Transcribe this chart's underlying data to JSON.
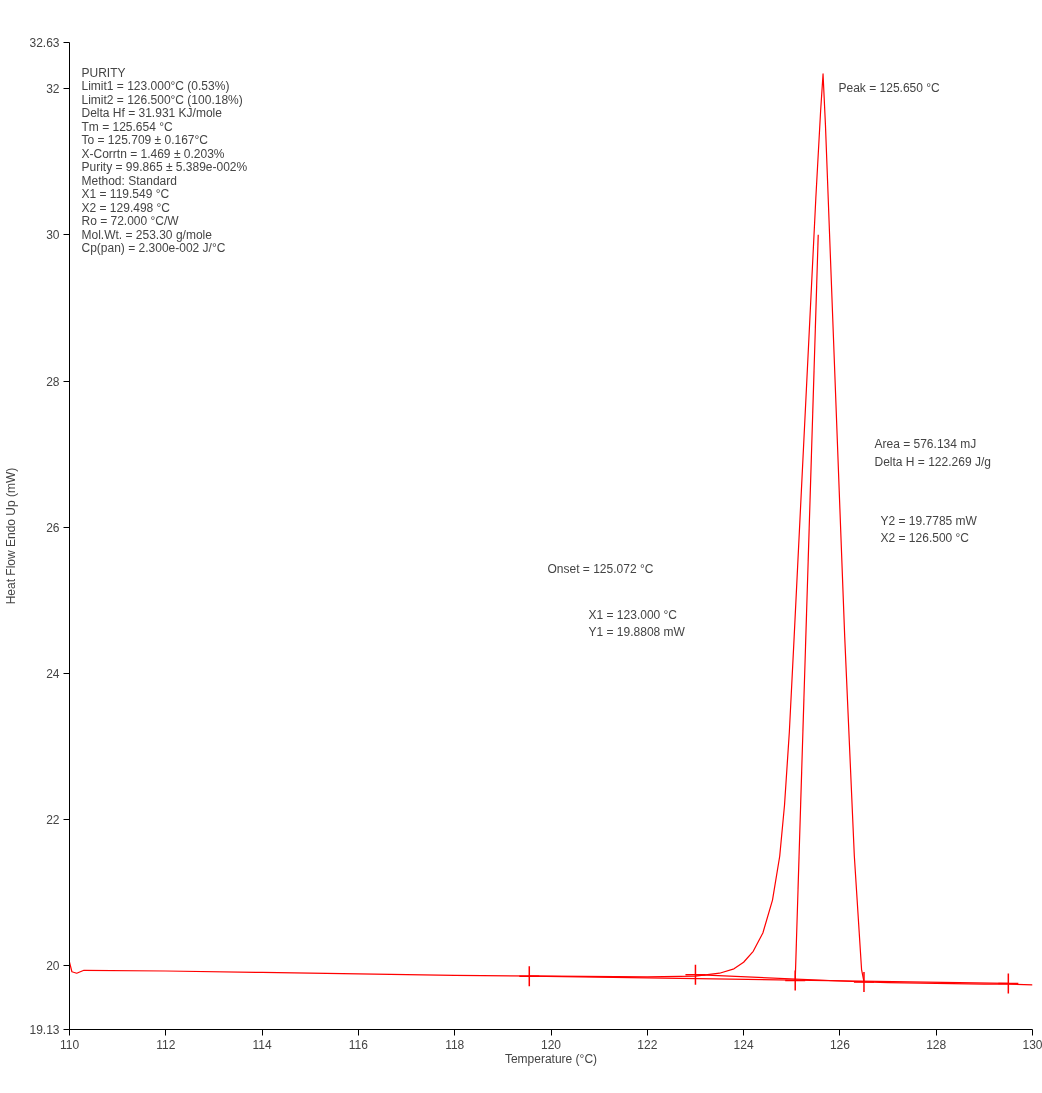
{
  "chart_data": {
    "type": "line",
    "xlabel": "Temperature (°C)",
    "ylabel": "Heat Flow Endo Up (mW)",
    "xlim": [
      110,
      130
    ],
    "ylim": [
      19.13,
      32.63
    ],
    "xticks": [
      110,
      112,
      114,
      116,
      118,
      120,
      122,
      124,
      126,
      128,
      130
    ],
    "yticks": [
      19.13,
      20,
      22,
      24,
      26,
      28,
      30,
      32,
      32.63
    ],
    "grid": false,
    "series": [
      {
        "color": "#ff0000",
        "x": [
          110,
          110.05,
          110.15,
          110.3,
          112,
          114,
          116,
          118,
          120,
          122,
          123,
          123.5,
          123.8,
          124.0,
          124.2,
          124.4,
          124.6,
          124.75,
          124.85,
          124.95,
          125.05,
          125.2,
          125.35,
          125.5,
          125.6,
          125.65,
          125.7,
          125.9,
          126.1,
          126.3,
          126.45,
          126.5,
          127,
          128,
          129,
          129.5,
          130
        ],
        "values": [
          20.05,
          19.92,
          19.9,
          19.94,
          19.93,
          19.91,
          19.89,
          19.87,
          19.86,
          19.85,
          19.86,
          19.9,
          19.96,
          20.05,
          20.2,
          20.45,
          20.9,
          21.5,
          22.2,
          23.2,
          24.5,
          26.5,
          28.5,
          30.5,
          31.7,
          32.2,
          31.5,
          28.0,
          24.5,
          21.5,
          19.95,
          19.78,
          19.77,
          19.76,
          19.75,
          19.75,
          19.74
        ]
      },
      {
        "color": "#ff0000",
        "x": [
          125.072,
          125.55
        ],
        "values": [
          19.8,
          30.0
        ]
      },
      {
        "color": "#ff0000",
        "x": [
          123.0,
          126.5
        ],
        "values": [
          19.88,
          19.78
        ]
      },
      {
        "color": "#ff0000",
        "x": [
          119.549,
          129.498
        ],
        "values": [
          19.86,
          19.76
        ]
      },
      {
        "type": "scatter",
        "marker": "cross",
        "color": "#ff0000",
        "x": [
          119.549,
          123.0,
          125.072,
          126.5,
          129.498
        ],
        "values": [
          19.86,
          19.88,
          19.8,
          19.78,
          19.76
        ]
      }
    ],
    "annotations": [
      "PURITY",
      "Limit1 = 123.000°C (0.53%)",
      "Limit2 = 126.500°C (100.18%)",
      "Delta Hf = 31.931 KJ/mole",
      "Tm = 125.654 °C",
      "To = 125.709 ± 0.167°C",
      "X-Corrtn = 1.469 ± 0.203%",
      "Purity = 99.865 ± 5.389e-002%",
      "Method: Standard",
      "X1 = 119.549 °C",
      "X2 = 129.498 °C",
      "Ro = 72.000 °C/W",
      "Mol.Wt. = 253.30 g/mole",
      "Cp(pan) = 2.300e-002 J/°C",
      "Peak = 125.650 °C",
      "Area = 576.134 mJ",
      "Delta H = 122.269 J/g",
      "Y2 = 19.7785 mW",
      "X2 = 126.500 °C",
      "Onset = 125.072 °C",
      "X1 = 123.000 °C",
      "Y1 = 19.8808 mW"
    ]
  }
}
